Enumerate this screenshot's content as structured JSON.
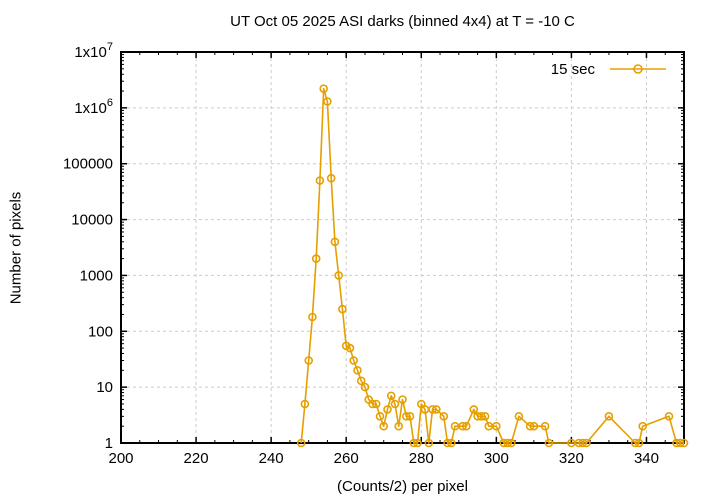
{
  "chart_data": {
    "type": "line",
    "title": "UT Oct 05 2025 ASI darks (binned 4x4) at T = -10 C",
    "xlabel": "(Counts/2) per pixel",
    "ylabel": "Number of pixels",
    "x_range": [
      200,
      350
    ],
    "y_range": [
      1,
      10000000
    ],
    "y_scale": "log10",
    "grid": true,
    "x_ticks": [
      200,
      220,
      240,
      260,
      280,
      300,
      320,
      340
    ],
    "x_minor_tick_step": 5,
    "y_ticks": [
      {
        "value": 1,
        "label": "1"
      },
      {
        "value": 10,
        "label": "10"
      },
      {
        "value": 100,
        "label": "100"
      },
      {
        "value": 1000,
        "label": "1000"
      },
      {
        "value": 10000,
        "label": "10000"
      },
      {
        "value": 100000,
        "label": "100000"
      },
      {
        "value": 1000000,
        "label": "1x10^6"
      },
      {
        "value": 10000000,
        "label": "1x10^7"
      }
    ],
    "legend_position": "top-right-inside",
    "legend": [
      {
        "label": "15 sec",
        "marker": "open-circle"
      }
    ],
    "colors": {
      "series": "#E69F00",
      "grid": "#cccccc",
      "frame": "#000000",
      "background": "#ffffff"
    },
    "series": [
      {
        "name": "15 sec",
        "points": [
          [
            248,
            1
          ],
          [
            249,
            5
          ],
          [
            250,
            30
          ],
          [
            251,
            180
          ],
          [
            252,
            2000
          ],
          [
            253,
            50000
          ],
          [
            254,
            2200000
          ],
          [
            255,
            1300000
          ],
          [
            256,
            55000
          ],
          [
            257,
            4000
          ],
          [
            258,
            1000
          ],
          [
            259,
            250
          ],
          [
            260,
            55
          ],
          [
            261,
            50
          ],
          [
            262,
            30
          ],
          [
            263,
            20
          ],
          [
            264,
            13
          ],
          [
            265,
            10
          ],
          [
            266,
            6
          ],
          [
            267,
            5
          ],
          [
            268,
            5
          ],
          [
            269,
            3
          ],
          [
            270,
            2
          ],
          [
            271,
            4
          ],
          [
            272,
            7
          ],
          [
            273,
            5
          ],
          [
            274,
            2
          ],
          [
            275,
            6
          ],
          [
            276,
            3
          ],
          [
            277,
            3
          ],
          [
            278,
            1
          ],
          [
            279,
            1
          ],
          [
            280,
            5
          ],
          [
            281,
            4
          ],
          [
            282,
            1
          ],
          [
            283,
            4
          ],
          [
            284,
            4
          ],
          [
            286,
            3
          ],
          [
            287,
            1
          ],
          [
            288,
            1
          ],
          [
            289,
            2
          ],
          [
            291,
            2
          ],
          [
            292,
            2
          ],
          [
            294,
            4
          ],
          [
            295,
            3
          ],
          [
            296,
            3
          ],
          [
            297,
            3
          ],
          [
            298,
            2
          ],
          [
            300,
            2
          ],
          [
            302,
            1
          ],
          [
            303,
            1
          ],
          [
            304,
            1
          ],
          [
            306,
            3
          ],
          [
            309,
            2
          ],
          [
            310,
            2
          ],
          [
            313,
            2
          ],
          [
            314,
            1
          ],
          [
            320,
            1
          ],
          [
            322,
            1
          ],
          [
            323,
            1
          ],
          [
            324,
            1
          ],
          [
            330,
            3
          ],
          [
            337,
            1
          ],
          [
            338,
            1
          ],
          [
            339,
            2
          ],
          [
            346,
            3
          ],
          [
            348,
            1
          ],
          [
            349,
            1
          ],
          [
            350,
            1
          ]
        ]
      }
    ]
  }
}
